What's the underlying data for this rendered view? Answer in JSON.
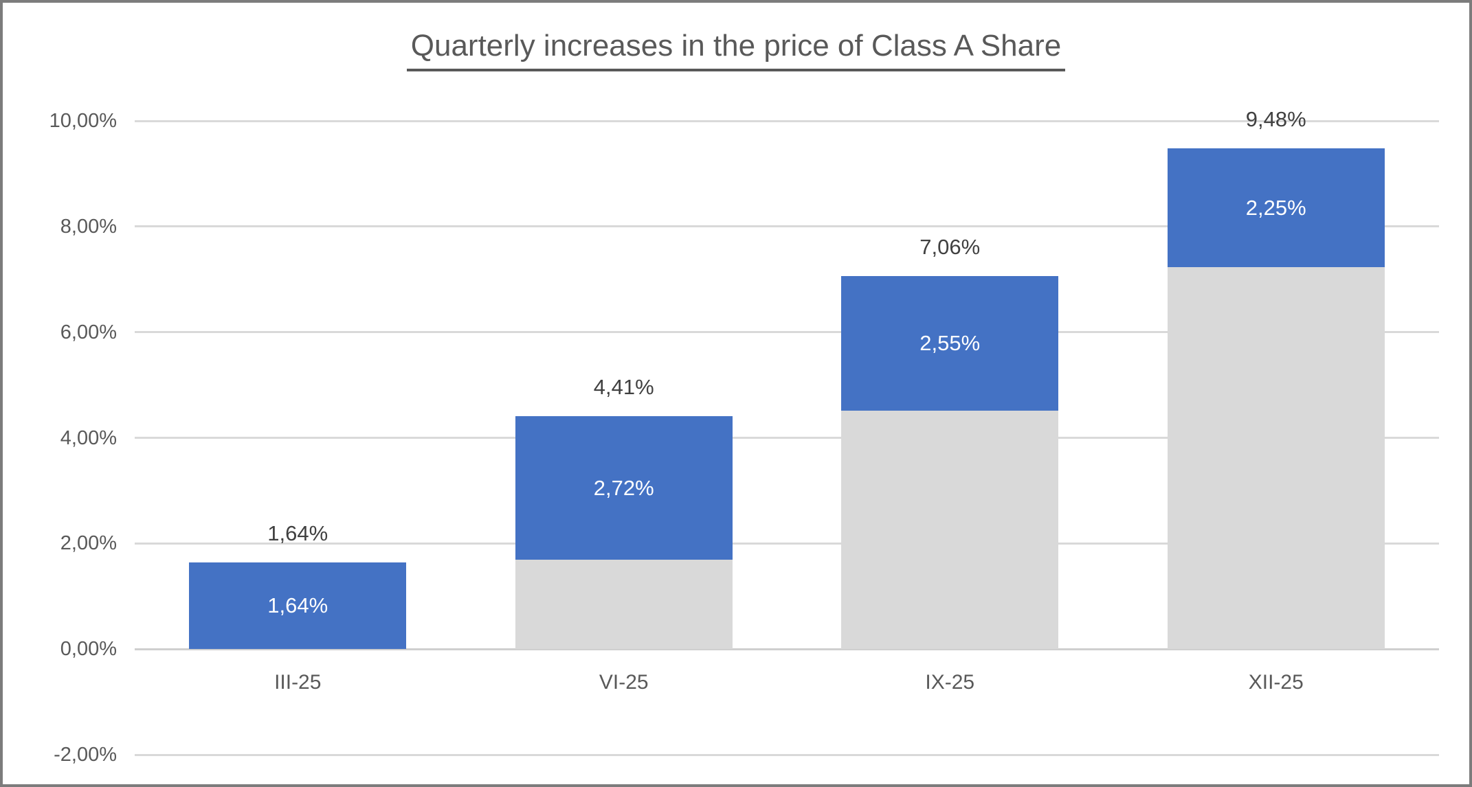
{
  "window": {
    "background_color": "#ffffff",
    "border_color": "#7c7c7c"
  },
  "chart_data": {
    "type": "bar",
    "stacked": true,
    "title": "Quarterly increases in the price of Class A Share",
    "title_underlined": true,
    "grid": true,
    "legend": "none",
    "categories": [
      "III-25",
      "VI-25",
      "IX-25",
      "XII-25"
    ],
    "series": [
      {
        "name": "cumulative-base",
        "color": "#d9d9d9",
        "values": [
          0,
          1.69,
          4.51,
          7.23
        ],
        "labels": [
          "",
          "",
          "",
          ""
        ]
      },
      {
        "name": "quarterly-increase",
        "color": "#4472c4",
        "values": [
          1.64,
          2.72,
          2.55,
          2.25
        ],
        "labels": [
          "1,64%",
          "2,72%",
          "2,55%",
          "2,25%"
        ],
        "label_color": "#ffffff"
      }
    ],
    "totals": [
      1.64,
      4.41,
      7.06,
      9.48
    ],
    "total_labels": [
      "1,64%",
      "4,41%",
      "7,06%",
      "9,48%"
    ],
    "y_axis": {
      "min": -2,
      "max": 10,
      "step": 2,
      "tick_values": [
        10,
        8,
        6,
        4,
        2,
        0,
        -2
      ],
      "tick_labels": [
        "10,00%",
        "8,00%",
        "6,00%",
        "4,00%",
        "2,00%",
        "0,00%",
        "-2,00%"
      ]
    },
    "colors": {
      "gridline": "#d9d9d9",
      "axis_line": "#cfcfcf",
      "tick_text": "#595959",
      "category_text": "#595959",
      "total_label_text": "#404040",
      "title_text": "#595959"
    }
  }
}
